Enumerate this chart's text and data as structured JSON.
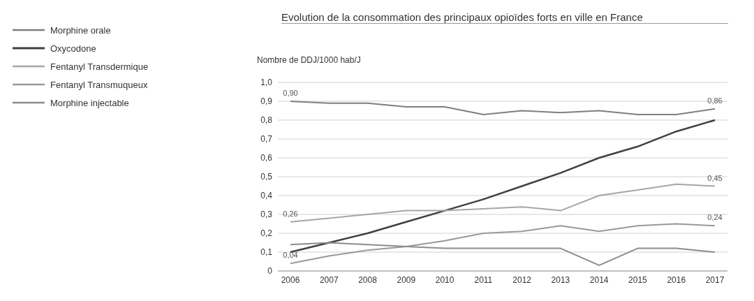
{
  "chart_data": {
    "type": "line",
    "title": "Evolution de la consommation des principaux opioïdes forts en ville en France",
    "ylabel": "Nombre de DDJ/1000 hab/J",
    "categories": [
      "2006",
      "2007",
      "2008",
      "2009",
      "2010",
      "2011",
      "2012",
      "2013",
      "2014",
      "2015",
      "2016",
      "2017"
    ],
    "series": [
      {
        "name": "Morphine orale",
        "color": "#7f7f7f",
        "values": [
          0.9,
          0.89,
          0.89,
          0.87,
          0.87,
          0.83,
          0.85,
          0.84,
          0.85,
          0.83,
          0.83,
          0.86
        ],
        "value_labels": [
          "0,90",
          null,
          null,
          null,
          null,
          null,
          null,
          null,
          null,
          null,
          null,
          "0,86"
        ]
      },
      {
        "name": "Oxycodone",
        "color": "#404040",
        "values": [
          0.1,
          0.15,
          0.2,
          0.26,
          0.32,
          0.38,
          0.45,
          0.52,
          0.6,
          0.66,
          0.74,
          0.8
        ]
      },
      {
        "name": "Fentanyl Transdermique",
        "color": "#a6a6a6",
        "values": [
          0.26,
          0.28,
          0.3,
          0.32,
          0.32,
          0.33,
          0.34,
          0.32,
          0.4,
          0.43,
          0.46,
          0.45
        ],
        "value_labels": [
          "0,26",
          null,
          null,
          null,
          null,
          null,
          null,
          null,
          null,
          null,
          null,
          "0,45"
        ]
      },
      {
        "name": "Fentanyl Transmuqueux",
        "color": "#999999",
        "values": [
          0.04,
          0.08,
          0.11,
          0.13,
          0.16,
          0.2,
          0.21,
          0.24,
          0.21,
          0.24,
          0.25,
          0.24
        ],
        "value_labels": [
          "0,04",
          null,
          null,
          null,
          null,
          null,
          null,
          null,
          null,
          null,
          null,
          "0,24"
        ]
      },
      {
        "name": "Morphine injectable",
        "color": "#8c8c8c",
        "values": [
          0.14,
          0.15,
          0.14,
          0.13,
          0.12,
          0.12,
          0.12,
          0.12,
          0.03,
          0.12,
          0.12,
          0.1
        ]
      }
    ],
    "ylim": [
      0,
      1.0
    ],
    "yticks": [
      {
        "value": 0,
        "label": "0"
      },
      {
        "value": 0.1,
        "label": "0,1"
      },
      {
        "value": 0.2,
        "label": "0,2"
      },
      {
        "value": 0.3,
        "label": "0,3"
      },
      {
        "value": 0.4,
        "label": "0,4"
      },
      {
        "value": 0.5,
        "label": "0,5"
      },
      {
        "value": 0.6,
        "label": "0,6"
      },
      {
        "value": 0.7,
        "label": "0,7"
      },
      {
        "value": 0.8,
        "label": "0,8"
      },
      {
        "value": 0.9,
        "label": "0,9"
      },
      {
        "value": 1.0,
        "label": "1,0"
      }
    ],
    "grid": "y",
    "legend": "top left",
    "marker": "none",
    "line_style": "solid"
  }
}
